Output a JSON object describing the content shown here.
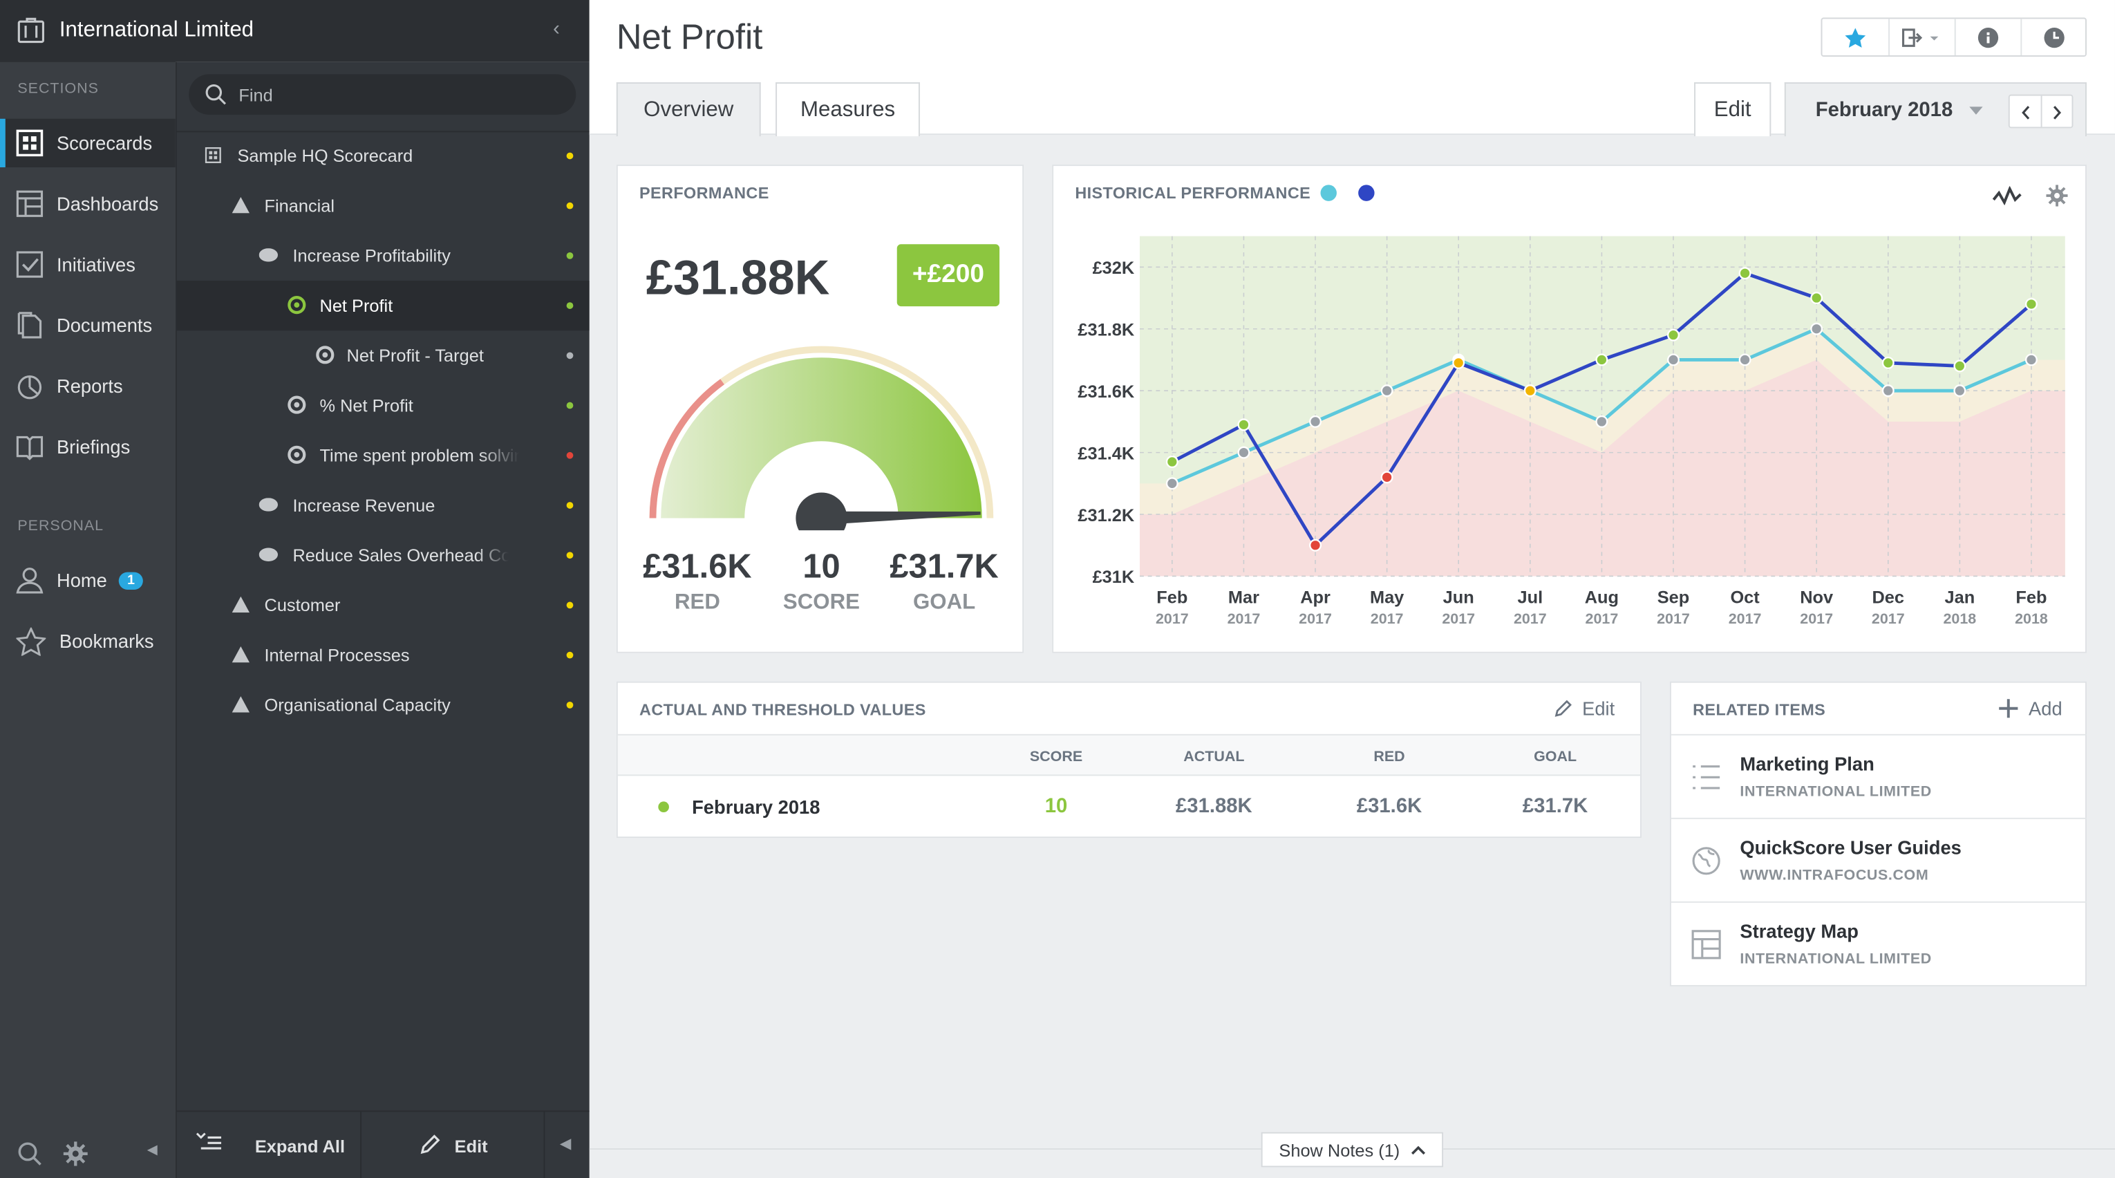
{
  "org_name": "International Limited",
  "nav": {
    "sections_label": "SECTIONS",
    "personal_label": "PERSONAL",
    "items": [
      {
        "label": "Scorecards",
        "icon": "scorecard-icon"
      },
      {
        "label": "Dashboards",
        "icon": "dashboard-icon"
      },
      {
        "label": "Initiatives",
        "icon": "checkbox-icon"
      },
      {
        "label": "Documents",
        "icon": "documents-icon"
      },
      {
        "label": "Reports",
        "icon": "pie-chart-icon"
      },
      {
        "label": "Briefings",
        "icon": "book-icon"
      }
    ],
    "personal": [
      {
        "label": "Home",
        "badge": "1",
        "icon": "user-icon"
      },
      {
        "label": "Bookmarks",
        "icon": "star-icon"
      }
    ]
  },
  "tree": {
    "find_placeholder": "Find",
    "expand_all": "Expand All",
    "edit": "Edit",
    "items": [
      {
        "label": "Sample HQ Scorecard",
        "status_color": "#f2d600"
      },
      {
        "label": "Financial",
        "status_color": "#f2d600"
      },
      {
        "label": "Increase Profitability",
        "status_color": "#8cc63f"
      },
      {
        "label": "Net Profit",
        "status_color": "#8cc63f"
      },
      {
        "label": "Net Profit - Target",
        "status_color": "#b0b4b8"
      },
      {
        "label": "% Net Profit",
        "status_color": "#8cc63f"
      },
      {
        "label": "Time spent problem solving",
        "status_color": "#e2453a"
      },
      {
        "label": "Increase Revenue",
        "status_color": "#f2d600"
      },
      {
        "label": "Reduce Sales Overhead Cost",
        "status_color": "#f2d600"
      },
      {
        "label": "Customer",
        "status_color": "#f2d600"
      },
      {
        "label": "Internal Processes",
        "status_color": "#f2d600"
      },
      {
        "label": "Organisational Capacity",
        "status_color": "#f2d600"
      }
    ]
  },
  "page": {
    "title": "Net Profit",
    "tabs": [
      "Overview",
      "Measures"
    ],
    "edit": "Edit",
    "period": "February 2018",
    "show_notes": "Show Notes (1)"
  },
  "performance": {
    "title": "PERFORMANCE",
    "value": "£31.88K",
    "change": "+£200",
    "red_value": "£31.6K",
    "red_label": "RED",
    "score_value": "10",
    "score_label": "SCORE",
    "goal_value": "£31.7K",
    "goal_label": "GOAL",
    "gauge_level": 0.99,
    "colors": {
      "green": "#8cc63f",
      "red": "#e9908a"
    }
  },
  "historical": {
    "title": "HISTORICAL PERFORMANCE"
  },
  "chart_data": {
    "type": "line",
    "categories": [
      "Feb 2017",
      "Mar 2017",
      "Apr 2017",
      "May 2017",
      "Jun 2017",
      "Jul 2017",
      "Aug 2017",
      "Sep 2017",
      "Oct 2017",
      "Nov 2017",
      "Dec 2017",
      "Jan 2018",
      "Feb 2018"
    ],
    "x_month": [
      "Feb",
      "Mar",
      "Apr",
      "May",
      "Jun",
      "Jul",
      "Aug",
      "Sep",
      "Oct",
      "Nov",
      "Dec",
      "Jan",
      "Feb"
    ],
    "x_year": [
      "2017",
      "2017",
      "2017",
      "2017",
      "2017",
      "2017",
      "2017",
      "2017",
      "2017",
      "2017",
      "2017",
      "2018",
      "2018"
    ],
    "ylim": [
      31000,
      32100
    ],
    "yticks": [
      "£31K",
      "£31.2K",
      "£31.4K",
      "£31.6K",
      "£31.8K",
      "£32K"
    ],
    "ytick_values": [
      31000,
      31200,
      31400,
      31600,
      31800,
      32000
    ],
    "series": [
      {
        "color": "#2f46c4",
        "values": [
          31370,
          31490,
          31100,
          31320,
          31690,
          31600,
          31700,
          31780,
          31980,
          31900,
          31690,
          31680,
          31880
        ],
        "point_colors": [
          "#8cc63f",
          "#8cc63f",
          "#e2453a",
          "#e2453a",
          "#f2b400",
          "#f2b400",
          "#8cc63f",
          "#8cc63f",
          "#8cc63f",
          "#8cc63f",
          "#8cc63f",
          "#8cc63f",
          "#8cc63f"
        ]
      },
      {
        "color": "#5cc8dc",
        "values": [
          31300,
          31400,
          31500,
          31600,
          31700,
          31600,
          31500,
          31700,
          31700,
          31800,
          31600,
          31600,
          31700
        ],
        "point_colors": [
          "#9aa0a6",
          "#9aa0a6",
          "#9aa0a6",
          "#9aa0a6",
          "#ffffff",
          "#9aa0a6",
          "#9aa0a6",
          "#9aa0a6",
          "#9aa0a6",
          "#9aa0a6",
          "#9aa0a6",
          "#9aa0a6",
          "#9aa0a6"
        ]
      }
    ],
    "red_threshold": [
      31200,
      31300,
      31400,
      31500,
      31600,
      31500,
      31400,
      31600,
      31600,
      31700,
      31500,
      31500,
      31600
    ],
    "goal_threshold": [
      31300,
      31400,
      31500,
      31600,
      31700,
      31600,
      31500,
      31700,
      31700,
      31800,
      31600,
      31600,
      31700
    ],
    "zone_colors": {
      "good": "#e7f1dc",
      "warn": "#f6efdc",
      "bad": "#f7dedd"
    }
  },
  "actuals": {
    "title": "ACTUAL AND THRESHOLD VALUES",
    "edit": "Edit",
    "headers": [
      "SCORE",
      "ACTUAL",
      "RED",
      "GOAL"
    ],
    "row": {
      "period": "February 2018",
      "score": "10",
      "actual": "£31.88K",
      "red": "£31.6K",
      "goal": "£31.7K"
    }
  },
  "related": {
    "title": "RELATED ITEMS",
    "add": "Add",
    "items": [
      {
        "title": "Marketing Plan",
        "sub": "INTERNATIONAL LIMITED",
        "icon": "list-icon"
      },
      {
        "title": "QuickScore User Guides",
        "sub": "WWW.INTRAFOCUS.COM",
        "icon": "globe-icon"
      },
      {
        "title": "Strategy Map",
        "sub": "INTERNATIONAL LIMITED",
        "icon": "layout-icon"
      }
    ]
  }
}
